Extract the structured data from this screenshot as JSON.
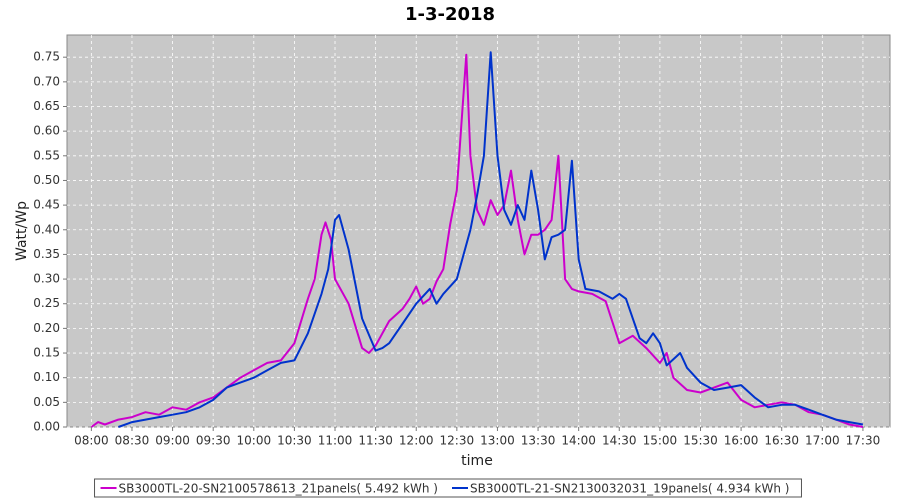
{
  "chart_data": {
    "type": "line",
    "title": "1-3-2018",
    "x_label": "time",
    "y_label": "Watt/Wp",
    "xlim": [
      "07:42",
      "17:50"
    ],
    "xticks": [
      "08:00",
      "08:30",
      "09:00",
      "09:30",
      "10:00",
      "10:30",
      "11:00",
      "11:30",
      "12:00",
      "12:30",
      "13:00",
      "13:30",
      "14:00",
      "14:30",
      "15:00",
      "15:30",
      "16:00",
      "16:30",
      "17:00",
      "17:30"
    ],
    "ylim": [
      0,
      0.795
    ],
    "yticks": [
      {
        "value": 0,
        "label": "0.00"
      },
      0.05,
      {
        "value": 0.1,
        "label": "0.10"
      },
      0.15,
      {
        "value": 0.2,
        "label": "0.20"
      },
      0.25,
      {
        "value": 0.3,
        "label": "0.30"
      },
      0.35,
      {
        "value": 0.4,
        "label": "0.40"
      },
      0.45,
      {
        "value": 0.5,
        "label": "0.50"
      },
      0.55,
      {
        "value": 0.6,
        "label": "0.60"
      },
      0.65,
      {
        "value": 0.7,
        "label": "0.70"
      },
      0.75
    ],
    "grid": true,
    "series": [
      {
        "name": "SB3000TL-20-SN2100578613_21panels( 5.492 kWh )",
        "color": "#cc00cc",
        "x": [
          "08:00",
          "08:05",
          "08:10",
          "08:20",
          "08:30",
          "08:40",
          "08:50",
          "09:00",
          "09:10",
          "09:20",
          "09:30",
          "09:40",
          "09:50",
          "10:00",
          "10:10",
          "10:20",
          "10:30",
          "10:40",
          "10:45",
          "10:50",
          "10:53",
          "10:57",
          "11:00",
          "11:10",
          "11:20",
          "11:25",
          "11:30",
          "11:40",
          "11:50",
          "11:55",
          "12:00",
          "12:05",
          "12:10",
          "12:15",
          "12:20",
          "12:25",
          "12:30",
          "12:33",
          "12:37",
          "12:40",
          "12:45",
          "12:50",
          "12:55",
          "13:00",
          "13:05",
          "13:10",
          "13:15",
          "13:20",
          "13:25",
          "13:30",
          "13:35",
          "13:40",
          "13:45",
          "13:50",
          "13:55",
          "14:00",
          "14:10",
          "14:20",
          "14:30",
          "14:40",
          "14:50",
          "15:00",
          "15:05",
          "15:10",
          "15:20",
          "15:30",
          "15:40",
          "15:50",
          "16:00",
          "16:10",
          "16:20",
          "16:30",
          "16:40",
          "16:50",
          "17:00",
          "17:10",
          "17:20",
          "17:30"
        ],
        "values": [
          0.0,
          0.01,
          0.005,
          0.015,
          0.02,
          0.03,
          0.025,
          0.04,
          0.035,
          0.05,
          0.06,
          0.08,
          0.1,
          0.115,
          0.13,
          0.135,
          0.17,
          0.26,
          0.3,
          0.39,
          0.415,
          0.38,
          0.3,
          0.25,
          0.16,
          0.15,
          0.165,
          0.215,
          0.24,
          0.26,
          0.285,
          0.25,
          0.26,
          0.295,
          0.32,
          0.41,
          0.48,
          0.6,
          0.755,
          0.55,
          0.44,
          0.41,
          0.46,
          0.43,
          0.45,
          0.52,
          0.42,
          0.35,
          0.39,
          0.39,
          0.4,
          0.42,
          0.55,
          0.3,
          0.28,
          0.275,
          0.27,
          0.255,
          0.17,
          0.185,
          0.16,
          0.13,
          0.15,
          0.1,
          0.075,
          0.07,
          0.08,
          0.09,
          0.055,
          0.04,
          0.045,
          0.05,
          0.045,
          0.03,
          0.025,
          0.015,
          0.005,
          0.0
        ]
      },
      {
        "name": "SB3000TL-21-SN2130032031_19panels( 4.934 kWh )",
        "color": "#0033cc",
        "x": [
          "08:20",
          "08:30",
          "08:40",
          "08:50",
          "09:00",
          "09:10",
          "09:20",
          "09:30",
          "09:40",
          "09:50",
          "10:00",
          "10:10",
          "10:20",
          "10:30",
          "10:40",
          "10:50",
          "10:55",
          "11:00",
          "11:03",
          "11:10",
          "11:20",
          "11:30",
          "11:35",
          "11:40",
          "11:50",
          "12:00",
          "12:10",
          "12:15",
          "12:20",
          "12:30",
          "12:40",
          "12:45",
          "12:50",
          "12:55",
          "13:00",
          "13:05",
          "13:10",
          "13:15",
          "13:20",
          "13:25",
          "13:30",
          "13:35",
          "13:40",
          "13:45",
          "13:50",
          "13:55",
          "14:00",
          "14:05",
          "14:15",
          "14:25",
          "14:30",
          "14:35",
          "14:45",
          "14:50",
          "14:55",
          "15:00",
          "15:05",
          "15:15",
          "15:20",
          "15:30",
          "15:40",
          "15:50",
          "16:00",
          "16:10",
          "16:20",
          "16:30",
          "16:40",
          "16:50",
          "17:00",
          "17:10",
          "17:20",
          "17:30"
        ],
        "values": [
          0.0,
          0.01,
          0.015,
          0.02,
          0.025,
          0.03,
          0.04,
          0.055,
          0.08,
          0.09,
          0.1,
          0.115,
          0.13,
          0.135,
          0.19,
          0.27,
          0.32,
          0.42,
          0.43,
          0.36,
          0.22,
          0.155,
          0.16,
          0.17,
          0.21,
          0.25,
          0.28,
          0.25,
          0.27,
          0.3,
          0.4,
          0.47,
          0.55,
          0.76,
          0.55,
          0.44,
          0.41,
          0.45,
          0.42,
          0.52,
          0.44,
          0.34,
          0.385,
          0.39,
          0.4,
          0.54,
          0.34,
          0.28,
          0.275,
          0.26,
          0.27,
          0.26,
          0.18,
          0.17,
          0.19,
          0.17,
          0.125,
          0.15,
          0.12,
          0.09,
          0.075,
          0.08,
          0.085,
          0.06,
          0.04,
          0.045,
          0.045,
          0.035,
          0.025,
          0.015,
          0.01,
          0.005
        ]
      }
    ]
  }
}
